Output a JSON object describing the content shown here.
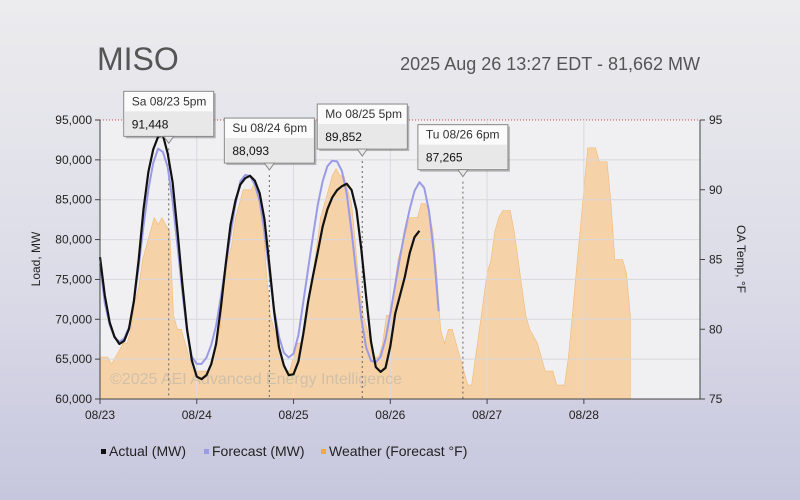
{
  "chart_data": {
    "type": "line",
    "title": "MISO",
    "subtitle": "2025 Aug 26 13:27 EDT - 81,662 MW",
    "ylabel_left": "Load, MW",
    "ylabel_right": "OA Temp, °F",
    "ylim_left": [
      60000,
      95000
    ],
    "ylim_right": [
      75,
      95
    ],
    "yticks_left": [
      "60,000",
      "65,000",
      "70,000",
      "75,000",
      "80,000",
      "85,000",
      "90,000",
      "95,000"
    ],
    "yticks_right": [
      "75",
      "80",
      "85",
      "90",
      "95"
    ],
    "x_range_days": [
      0,
      6.2
    ],
    "xticks": [
      {
        "day": 0,
        "label": "08/23"
      },
      {
        "day": 1,
        "label": "08/24"
      },
      {
        "day": 2,
        "label": "08/25"
      },
      {
        "day": 3,
        "label": "08/26"
      },
      {
        "day": 4,
        "label": "08/27"
      },
      {
        "day": 5,
        "label": "08/28"
      }
    ],
    "watermark": "©2025 AEI Advanced Energy Intelligence",
    "series": [
      {
        "name": "Actual (MW)",
        "color": "#111111",
        "points": [
          [
            0,
            77800
          ],
          [
            0.05,
            73000
          ],
          [
            0.1,
            69600
          ],
          [
            0.15,
            67800
          ],
          [
            0.2,
            66900
          ],
          [
            0.25,
            67300
          ],
          [
            0.3,
            68800
          ],
          [
            0.35,
            72300
          ],
          [
            0.4,
            77500
          ],
          [
            0.45,
            83800
          ],
          [
            0.5,
            88500
          ],
          [
            0.55,
            91300
          ],
          [
            0.6,
            92900
          ],
          [
            0.65,
            93100
          ],
          [
            0.7,
            90800
          ],
          [
            0.75,
            87200
          ],
          [
            0.8,
            81200
          ],
          [
            0.85,
            74500
          ],
          [
            0.9,
            68700
          ],
          [
            0.95,
            64800
          ],
          [
            1.0,
            62800
          ],
          [
            1.05,
            62500
          ],
          [
            1.1,
            63000
          ],
          [
            1.15,
            64400
          ],
          [
            1.2,
            66900
          ],
          [
            1.25,
            71600
          ],
          [
            1.3,
            77000
          ],
          [
            1.35,
            81900
          ],
          [
            1.4,
            84900
          ],
          [
            1.45,
            86900
          ],
          [
            1.5,
            87700
          ],
          [
            1.55,
            88000
          ],
          [
            1.6,
            87400
          ],
          [
            1.65,
            85800
          ],
          [
            1.7,
            82500
          ],
          [
            1.75,
            76800
          ],
          [
            1.8,
            70900
          ],
          [
            1.85,
            66500
          ],
          [
            1.9,
            64200
          ],
          [
            1.95,
            63000
          ],
          [
            2.0,
            63100
          ],
          [
            2.05,
            64700
          ],
          [
            2.1,
            68100
          ],
          [
            2.15,
            72200
          ],
          [
            2.2,
            75400
          ],
          [
            2.25,
            78400
          ],
          [
            2.3,
            81600
          ],
          [
            2.35,
            83800
          ],
          [
            2.4,
            85300
          ],
          [
            2.45,
            86200
          ],
          [
            2.5,
            86700
          ],
          [
            2.55,
            87000
          ],
          [
            2.6,
            86200
          ],
          [
            2.65,
            83700
          ],
          [
            2.7,
            78800
          ],
          [
            2.75,
            72900
          ],
          [
            2.8,
            67200
          ],
          [
            2.85,
            64000
          ],
          [
            2.9,
            63400
          ],
          [
            2.95,
            63900
          ],
          [
            3.0,
            66600
          ],
          [
            3.05,
            70700
          ],
          [
            3.1,
            73000
          ],
          [
            3.15,
            75300
          ],
          [
            3.2,
            78300
          ],
          [
            3.25,
            80300
          ],
          [
            3.3,
            81100
          ]
        ]
      },
      {
        "name": "Forecast (MW)",
        "color": "#9a9ae6",
        "points": [
          [
            0,
            77000
          ],
          [
            0.05,
            72000
          ],
          [
            0.1,
            69300
          ],
          [
            0.15,
            67700
          ],
          [
            0.2,
            67200
          ],
          [
            0.25,
            67600
          ],
          [
            0.3,
            69000
          ],
          [
            0.35,
            72300
          ],
          [
            0.4,
            76600
          ],
          [
            0.45,
            81700
          ],
          [
            0.5,
            86300
          ],
          [
            0.55,
            89600
          ],
          [
            0.6,
            91400
          ],
          [
            0.65,
            91000
          ],
          [
            0.7,
            89100
          ],
          [
            0.75,
            84800
          ],
          [
            0.8,
            79300
          ],
          [
            0.85,
            73500
          ],
          [
            0.9,
            68400
          ],
          [
            0.95,
            65300
          ],
          [
            1.0,
            64400
          ],
          [
            1.05,
            64400
          ],
          [
            1.1,
            65200
          ],
          [
            1.15,
            66800
          ],
          [
            1.2,
            69200
          ],
          [
            1.25,
            72900
          ],
          [
            1.3,
            76800
          ],
          [
            1.35,
            80700
          ],
          [
            1.4,
            84500
          ],
          [
            1.45,
            87300
          ],
          [
            1.5,
            88100
          ],
          [
            1.55,
            88000
          ],
          [
            1.6,
            86900
          ],
          [
            1.65,
            84800
          ],
          [
            1.7,
            80900
          ],
          [
            1.75,
            75900
          ],
          [
            1.8,
            71200
          ],
          [
            1.85,
            67800
          ],
          [
            1.9,
            65800
          ],
          [
            1.95,
            65200
          ],
          [
            2.0,
            65700
          ],
          [
            2.05,
            68000
          ],
          [
            2.1,
            72100
          ],
          [
            2.15,
            76300
          ],
          [
            2.2,
            80400
          ],
          [
            2.25,
            84300
          ],
          [
            2.3,
            87300
          ],
          [
            2.35,
            89200
          ],
          [
            2.4,
            89900
          ],
          [
            2.45,
            89800
          ],
          [
            2.5,
            88600
          ],
          [
            2.55,
            85700
          ],
          [
            2.6,
            81000
          ],
          [
            2.65,
            75400
          ],
          [
            2.7,
            70100
          ],
          [
            2.75,
            66500
          ],
          [
            2.8,
            64800
          ],
          [
            2.85,
            64600
          ],
          [
            2.9,
            65300
          ],
          [
            2.95,
            67500
          ],
          [
            3.0,
            70700
          ],
          [
            3.05,
            74300
          ],
          [
            3.1,
            77800
          ],
          [
            3.15,
            81000
          ],
          [
            3.2,
            83800
          ],
          [
            3.25,
            86100
          ],
          [
            3.3,
            87200
          ],
          [
            3.35,
            86500
          ],
          [
            3.4,
            83600
          ],
          [
            3.45,
            78300
          ],
          [
            3.5,
            71000
          ]
        ]
      },
      {
        "name": "Weather (Forecast °F)",
        "color": "#f8c890",
        "points": [
          [
            0,
            78
          ],
          [
            0.04,
            78
          ],
          [
            0.08,
            78
          ],
          [
            0.12,
            77.5
          ],
          [
            0.16,
            78
          ],
          [
            0.2,
            78.5
          ],
          [
            0.24,
            79
          ],
          [
            0.28,
            79
          ],
          [
            0.32,
            80
          ],
          [
            0.36,
            82
          ],
          [
            0.4,
            83
          ],
          [
            0.44,
            85
          ],
          [
            0.48,
            86
          ],
          [
            0.52,
            87
          ],
          [
            0.56,
            88
          ],
          [
            0.6,
            87.5
          ],
          [
            0.64,
            88
          ],
          [
            0.68,
            87.5
          ],
          [
            0.72,
            87
          ],
          [
            0.76,
            81
          ],
          [
            0.8,
            80
          ],
          [
            0.84,
            80
          ],
          [
            0.88,
            79
          ],
          [
            0.92,
            78
          ],
          [
            0.96,
            77
          ],
          [
            1.0,
            77
          ],
          [
            1.04,
            77
          ],
          [
            1.08,
            77
          ],
          [
            1.12,
            77
          ],
          [
            1.16,
            78
          ],
          [
            1.2,
            79
          ],
          [
            1.24,
            80
          ],
          [
            1.28,
            83
          ],
          [
            1.32,
            85
          ],
          [
            1.36,
            86
          ],
          [
            1.4,
            88
          ],
          [
            1.44,
            89
          ],
          [
            1.48,
            90
          ],
          [
            1.52,
            90
          ],
          [
            1.56,
            90
          ],
          [
            1.6,
            90.5
          ],
          [
            1.64,
            90
          ],
          [
            1.68,
            88
          ],
          [
            1.72,
            84
          ],
          [
            1.76,
            81
          ],
          [
            1.8,
            80
          ],
          [
            1.84,
            79
          ],
          [
            1.88,
            78
          ],
          [
            1.92,
            77
          ],
          [
            1.96,
            77
          ],
          [
            2.0,
            78
          ],
          [
            2.04,
            79
          ],
          [
            2.08,
            79
          ],
          [
            2.12,
            80
          ],
          [
            2.16,
            82
          ],
          [
            2.2,
            84
          ],
          [
            2.24,
            86
          ],
          [
            2.28,
            88
          ],
          [
            2.32,
            89
          ],
          [
            2.36,
            90
          ],
          [
            2.4,
            91
          ],
          [
            2.44,
            91.5
          ],
          [
            2.48,
            91
          ],
          [
            2.52,
            91
          ],
          [
            2.56,
            90
          ],
          [
            2.6,
            89
          ],
          [
            2.64,
            86
          ],
          [
            2.68,
            83
          ],
          [
            2.72,
            81
          ],
          [
            2.76,
            80
          ],
          [
            2.8,
            79
          ],
          [
            2.84,
            78
          ],
          [
            2.88,
            78
          ],
          [
            2.92,
            79
          ],
          [
            2.96,
            81
          ],
          [
            3.0,
            81
          ],
          [
            3.04,
            83
          ],
          [
            3.08,
            85
          ],
          [
            3.12,
            86
          ],
          [
            3.16,
            87
          ],
          [
            3.2,
            88
          ],
          [
            3.24,
            88
          ],
          [
            3.28,
            88
          ],
          [
            3.32,
            89
          ],
          [
            3.36,
            89
          ],
          [
            3.4,
            88.5
          ],
          [
            3.44,
            87
          ],
          [
            3.48,
            84
          ],
          [
            3.52,
            80
          ],
          [
            3.56,
            79
          ],
          [
            3.6,
            80
          ],
          [
            3.64,
            80
          ],
          [
            3.68,
            79
          ],
          [
            3.72,
            78
          ],
          [
            3.76,
            77
          ],
          [
            3.8,
            76
          ],
          [
            3.84,
            76
          ],
          [
            3.88,
            78
          ],
          [
            3.92,
            80
          ],
          [
            3.96,
            82
          ],
          [
            4.0,
            84
          ],
          [
            4.04,
            85
          ],
          [
            4.08,
            87
          ],
          [
            4.12,
            88
          ],
          [
            4.16,
            88.5
          ],
          [
            4.2,
            88.5
          ],
          [
            4.24,
            88.5
          ],
          [
            4.28,
            87
          ],
          [
            4.32,
            85
          ],
          [
            4.36,
            83
          ],
          [
            4.4,
            81
          ],
          [
            4.44,
            80
          ],
          [
            4.48,
            79.5
          ],
          [
            4.52,
            79
          ],
          [
            4.56,
            78
          ],
          [
            4.6,
            77
          ],
          [
            4.64,
            77
          ],
          [
            4.68,
            77
          ],
          [
            4.72,
            76
          ],
          [
            4.76,
            76
          ],
          [
            4.8,
            76
          ],
          [
            4.84,
            78
          ],
          [
            4.88,
            81
          ],
          [
            4.92,
            84
          ],
          [
            4.96,
            87
          ],
          [
            5.0,
            90
          ],
          [
            5.04,
            93
          ],
          [
            5.08,
            93
          ],
          [
            5.12,
            93
          ],
          [
            5.16,
            92
          ],
          [
            5.2,
            92
          ],
          [
            5.24,
            92
          ],
          [
            5.28,
            89
          ],
          [
            5.32,
            85
          ],
          [
            5.36,
            85
          ],
          [
            5.4,
            85
          ],
          [
            5.44,
            84
          ],
          [
            5.48,
            81
          ]
        ]
      }
    ],
    "tooltips": [
      {
        "date": "Sa 08/23 5pm",
        "value": "91,448",
        "day": 0.71,
        "mw": 91448,
        "date_color": "#333333"
      },
      {
        "date": "Su 08/24 6pm",
        "value": "88,093",
        "day": 1.75,
        "mw": 88093,
        "date_color": "#333333"
      },
      {
        "date": "Mo 08/25 5pm",
        "value": "89,852",
        "day": 2.71,
        "mw": 89852,
        "date_color": "#333333"
      },
      {
        "date": "Tu 08/26 6pm",
        "value": "87,265",
        "day": 3.75,
        "mw": 87265,
        "date_color": "#cc0000"
      }
    ],
    "legend": [
      {
        "label": "Actual (MW)",
        "color": "#111111"
      },
      {
        "label": "Forecast (MW)",
        "color": "#9a9ae6"
      },
      {
        "label": "Weather (Forecast °F)",
        "color": "#f8a838"
      }
    ]
  }
}
